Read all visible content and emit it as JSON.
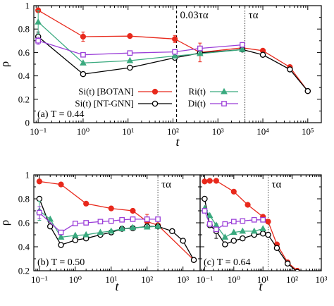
{
  "figure": {
    "x_axis_label": "t",
    "y_axis_label": "ρ"
  },
  "colors": {
    "botan": "#e8291c",
    "ntgnn": "#000000",
    "r": "#3aaa7f",
    "d": "#9b3fd8"
  },
  "chart_data": [
    {
      "type": "line",
      "panel_label": "(a) T = 0.44",
      "xscale": "log",
      "xlim": [
        0.08,
        200000
      ],
      "ylim": [
        0,
        1
      ],
      "x_ticks": [
        "10⁻¹",
        "10⁰",
        "10¹",
        "10²",
        "10³",
        "10⁴",
        "10⁵"
      ],
      "y_ticks": [
        "0",
        "0.2",
        "0.4",
        "0.6",
        "0.8",
        "1"
      ],
      "xlabel": "t",
      "ylabel": "ρ",
      "legend_position": "bottom-left inside plot",
      "annotations": [
        {
          "text": "0.03τα",
          "x": 120,
          "line": "dashed"
        },
        {
          "text": "τα",
          "x": 4000,
          "line": "dotted"
        }
      ],
      "series": [
        {
          "name": "Si(t) [BOTAN]",
          "key": "botan",
          "marker": "filled-circle",
          "x": [
            0.1,
            1,
            11,
            110,
            400,
            3500,
            10000,
            40000,
            100000
          ],
          "y": [
            0.96,
            0.735,
            0.74,
            0.715,
            0.6,
            0.64,
            0.615,
            0.475,
            0.27
          ],
          "errors": [
            0,
            0.04,
            0,
            0.03,
            0.08,
            0.02,
            0,
            0,
            0
          ]
        },
        {
          "name": "Si(t) [NT-GNN]",
          "key": "ntgnn",
          "marker": "open-circle",
          "x": [
            0.1,
            1,
            11,
            110,
            400,
            3500,
            10000,
            40000,
            100000
          ],
          "y": [
            0.735,
            0.415,
            0.47,
            0.555,
            0.595,
            0.625,
            0.58,
            0.455,
            0.27
          ],
          "errors": [
            0.04,
            0,
            0,
            0,
            0,
            0,
            0,
            0,
            0
          ]
        },
        {
          "name": "Ri(t)",
          "key": "r",
          "marker": "filled-triangle",
          "x": [
            0.1,
            1,
            11,
            110,
            400,
            3500
          ],
          "y": [
            0.86,
            0.51,
            0.53,
            0.57,
            0.59,
            0.625
          ],
          "errors": [
            0.1,
            0,
            0,
            0,
            0,
            0
          ]
        },
        {
          "name": "Di(t)",
          "key": "d",
          "marker": "open-square",
          "x": [
            0.1,
            1,
            11,
            110,
            400,
            3500
          ],
          "y": [
            0.7,
            0.58,
            0.595,
            0.605,
            0.635,
            0.665
          ],
          "errors": [
            0.03,
            0,
            0,
            0,
            0,
            0
          ]
        }
      ]
    },
    {
      "type": "line",
      "panel_label": "(b) T = 0.50",
      "xscale": "log",
      "xlim": [
        0.07,
        3000
      ],
      "ylim": [
        0.2,
        1
      ],
      "x_ticks": [
        "10⁻¹",
        "10⁰",
        "10¹",
        "10²",
        "10³"
      ],
      "y_ticks": [
        "0.2",
        "0.4",
        "0.6",
        "0.8",
        "1"
      ],
      "xlabel": "t",
      "ylabel": "ρ",
      "annotations": [
        {
          "text": "τα",
          "x": 200,
          "line": "dotted"
        }
      ],
      "series": [
        {
          "name": "Si(t) [BOTAN]",
          "key": "botan",
          "marker": "filled-circle",
          "x": [
            0.1,
            0.4,
            2,
            10,
            40,
            100,
            200,
            2000
          ],
          "y": [
            0.945,
            0.92,
            0.76,
            0.72,
            0.7,
            0.61,
            0.58,
            0.29
          ],
          "errors": [
            0,
            0,
            0,
            0,
            0,
            0.06,
            0,
            0
          ]
        },
        {
          "name": "Si(t) [NT-GNN]",
          "key": "ntgnn",
          "marker": "open-circle",
          "x": [
            0.1,
            0.2,
            0.4,
            1,
            2,
            5,
            10,
            20,
            40,
            100,
            200,
            500,
            1000,
            2000
          ],
          "y": [
            0.8,
            0.57,
            0.415,
            0.455,
            0.47,
            0.5,
            0.52,
            0.55,
            0.555,
            0.57,
            0.57,
            0.53,
            0.45,
            0.29
          ],
          "errors": [
            0,
            0,
            0,
            0,
            0,
            0,
            0,
            0,
            0,
            0,
            0,
            0,
            0,
            0
          ]
        },
        {
          "name": "Ri(t)",
          "key": "r",
          "marker": "filled-triangle",
          "x": [
            0.1,
            0.2,
            0.4,
            1,
            2,
            5,
            10,
            20,
            40,
            100,
            200
          ],
          "y": [
            0.7,
            0.63,
            0.48,
            0.495,
            0.5,
            0.52,
            0.53,
            0.55,
            0.56,
            0.565,
            0.57
          ],
          "errors": [
            0.08,
            0,
            0,
            0,
            0,
            0,
            0,
            0,
            0,
            0,
            0
          ]
        },
        {
          "name": "Di(t)",
          "key": "d",
          "marker": "open-square",
          "x": [
            0.1,
            0.4,
            1,
            2,
            5,
            10,
            20,
            40,
            100,
            200
          ],
          "y": [
            0.685,
            0.52,
            0.595,
            0.6,
            0.61,
            0.615,
            0.625,
            0.63,
            0.63,
            0.63
          ],
          "errors": [
            0.05,
            0,
            0,
            0,
            0,
            0,
            0,
            0,
            0,
            0
          ]
        }
      ]
    },
    {
      "type": "line",
      "panel_label": "(c) T = 0.64",
      "xscale": "log",
      "xlim": [
        0.07,
        1000
      ],
      "ylim": [
        0.2,
        1
      ],
      "x_ticks": [
        "10⁻¹",
        "10⁰",
        "10¹",
        "10²",
        "10³"
      ],
      "y_ticks": [],
      "xlabel": "t",
      "annotations": [
        {
          "text": "τα",
          "x": 15,
          "line": "dotted"
        }
      ],
      "series": [
        {
          "name": "Si(t) [BOTAN]",
          "key": "botan",
          "marker": "filled-circle",
          "x": [
            0.1,
            0.15,
            0.25,
            1,
            3,
            10,
            15,
            30,
            70,
            150,
            350
          ],
          "y": [
            0.945,
            0.95,
            0.95,
            0.86,
            0.75,
            0.65,
            0.61,
            0.42,
            0.27,
            0.2,
            0.175
          ],
          "errors": [
            0,
            0,
            0,
            0,
            0,
            0,
            0,
            0,
            0,
            0,
            0
          ]
        },
        {
          "name": "Si(t) [NT-GNN]",
          "key": "ntgnn",
          "marker": "open-circle",
          "x": [
            0.1,
            0.15,
            0.25,
            0.5,
            1,
            2,
            5,
            10,
            15,
            30,
            70,
            150,
            350
          ],
          "y": [
            0.8,
            0.58,
            0.53,
            0.42,
            0.45,
            0.47,
            0.5,
            0.51,
            0.5,
            0.39,
            0.26,
            0.19,
            0.17
          ],
          "errors": [
            0,
            0,
            0.06,
            0,
            0,
            0,
            0,
            0,
            0,
            0,
            0,
            0,
            0
          ]
        },
        {
          "name": "Ri(t)",
          "key": "r",
          "marker": "filled-triangle",
          "x": [
            0.1,
            0.15,
            0.25,
            0.5,
            1,
            2,
            5,
            10
          ],
          "y": [
            0.72,
            0.66,
            0.58,
            0.48,
            0.52,
            0.53,
            0.53,
            0.55
          ],
          "errors": [
            0,
            0,
            0,
            0,
            0,
            0,
            0,
            0
          ]
        },
        {
          "name": "Di(t)",
          "key": "d",
          "marker": "open-square",
          "x": [
            0.1,
            0.15,
            0.25,
            0.5,
            1,
            2,
            5,
            10
          ],
          "y": [
            0.7,
            0.59,
            0.545,
            0.59,
            0.61,
            0.615,
            0.625,
            0.625
          ],
          "errors": [
            0,
            0,
            0,
            0,
            0,
            0,
            0,
            0
          ]
        }
      ]
    }
  ]
}
